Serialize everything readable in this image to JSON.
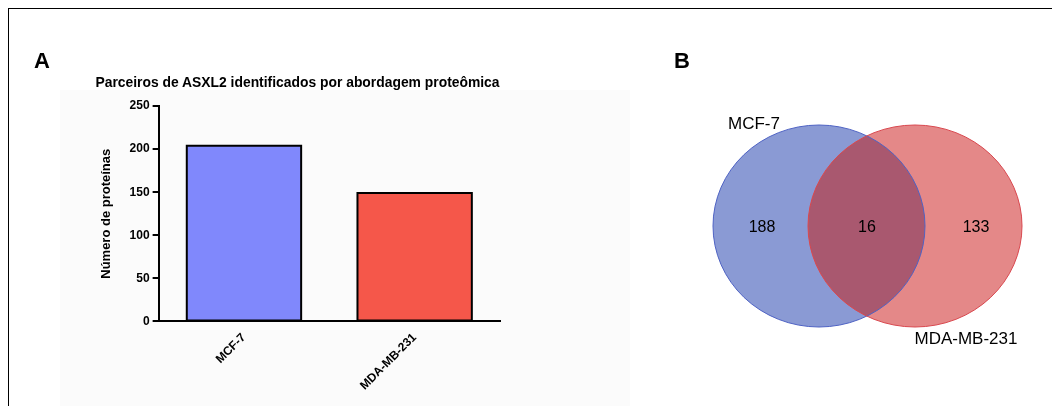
{
  "chart_data": [
    {
      "type": "bar",
      "title": "Parceiros de ASXL2 identificados por abordagem proteômica",
      "ylabel": "Número de proteínas",
      "annotations": [
        "A"
      ],
      "categories": [
        "MCF-7",
        "MDA-MB-231"
      ],
      "values": [
        204,
        149
      ],
      "colors": [
        "#8088fc",
        "#f5574a"
      ],
      "ylim": [
        0,
        250
      ],
      "yticks": [
        0,
        50,
        100,
        150,
        200,
        250
      ],
      "grid": false,
      "legend": false
    },
    {
      "type": "other",
      "annotations": [
        "B"
      ],
      "categories": [
        "MCF-7",
        null,
        "MDA-MB-231"
      ],
      "values": [
        188,
        16,
        133
      ],
      "data_labels": true,
      "colors": [
        "#8a9ad4",
        "#a9586f",
        "#e48888"
      ]
    }
  ]
}
